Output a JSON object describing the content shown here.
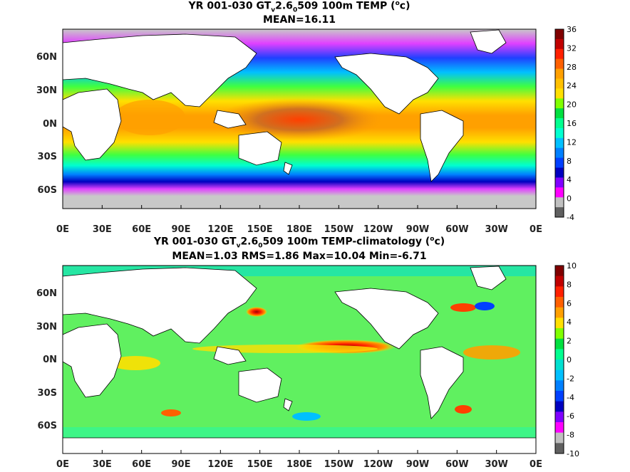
{
  "top_panel": {
    "title_prefix": "YR 001-030 GT",
    "title_sub1": "v",
    "title_mid": "2.6",
    "title_sub2": "0",
    "title_suffix": "509 100m TEMP (",
    "title_sup": "o",
    "title_end": "c)",
    "stats": "MEAN=16.11",
    "lat_labels": [
      "60N",
      "30N",
      "0N",
      "30S",
      "60S"
    ],
    "lon_labels": [
      "0E",
      "30E",
      "60E",
      "90E",
      "120E",
      "150E",
      "180E",
      "150W",
      "120W",
      "90W",
      "60W",
      "30W",
      "0E"
    ],
    "colorbar_labels": [
      "36",
      "32",
      "28",
      "24",
      "20",
      "16",
      "12",
      "8",
      "4",
      "0",
      "-4"
    ],
    "colorbar_colors": [
      "#800000",
      "#c00000",
      "#ff2000",
      "#ff6000",
      "#ffa000",
      "#ffc000",
      "#ffe000",
      "#80ff00",
      "#00e040",
      "#00ff90",
      "#00ffd0",
      "#00c0ff",
      "#0080ff",
      "#0040ff",
      "#0000c0",
      "#8000ff",
      "#ff00ff",
      "#c0c0c0",
      "#606060"
    ]
  },
  "bottom_panel": {
    "title_prefix": "YR 001-030 GT",
    "title_sub1": "v",
    "title_mid": "2.6",
    "title_sub2": "0",
    "title_suffix": "509 100m TEMP-climatology (",
    "title_sup": "o",
    "title_end": "c)",
    "stats": "MEAN=1.03   RMS=1.86   Max=10.04   Min=-6.71",
    "lat_labels": [
      "60N",
      "30N",
      "0N",
      "30S",
      "60S"
    ],
    "lon_labels": [
      "0E",
      "30E",
      "60E",
      "90E",
      "120E",
      "150E",
      "180E",
      "150W",
      "120W",
      "90W",
      "60W",
      "30W",
      "0E"
    ],
    "colorbar_labels": [
      "10",
      "8",
      "6",
      "4",
      "2",
      "0",
      "-2",
      "-4",
      "-6",
      "-8",
      "-10"
    ],
    "colorbar_colors": [
      "#800000",
      "#c00000",
      "#ff2000",
      "#ff6000",
      "#ffa000",
      "#ffe000",
      "#80ff00",
      "#00e040",
      "#00ff90",
      "#00e0d0",
      "#00c0ff",
      "#0080ff",
      "#0040ff",
      "#0000c0",
      "#8000ff",
      "#ff00ff",
      "#c0c0c0",
      "#606060"
    ]
  }
}
